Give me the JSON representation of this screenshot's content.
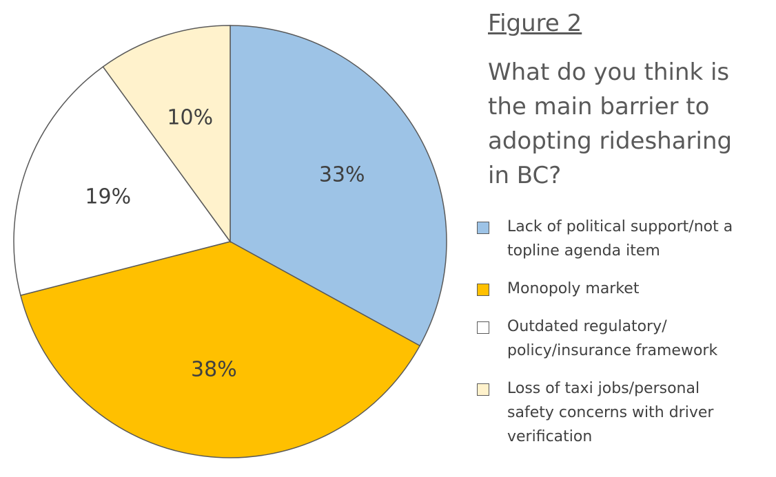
{
  "chart_data": {
    "type": "pie",
    "title": "Figure 2",
    "subtitle": "What do you think is the main barrier to adopting ridesharing in BC?",
    "categories": [
      "Lack of political support/not a topline agenda item",
      "Monopoly market",
      "Outdated regulatory/ policy/insurance framework",
      "Loss of taxi jobs/personal safety concerns with driver verification"
    ],
    "values": [
      33,
      38,
      19,
      10
    ],
    "value_labels": [
      "33%",
      "38%",
      "19%",
      "10%"
    ],
    "colors": [
      "#9dc3e6",
      "#ffc000",
      "#ffffff",
      "#fff2cc"
    ]
  }
}
